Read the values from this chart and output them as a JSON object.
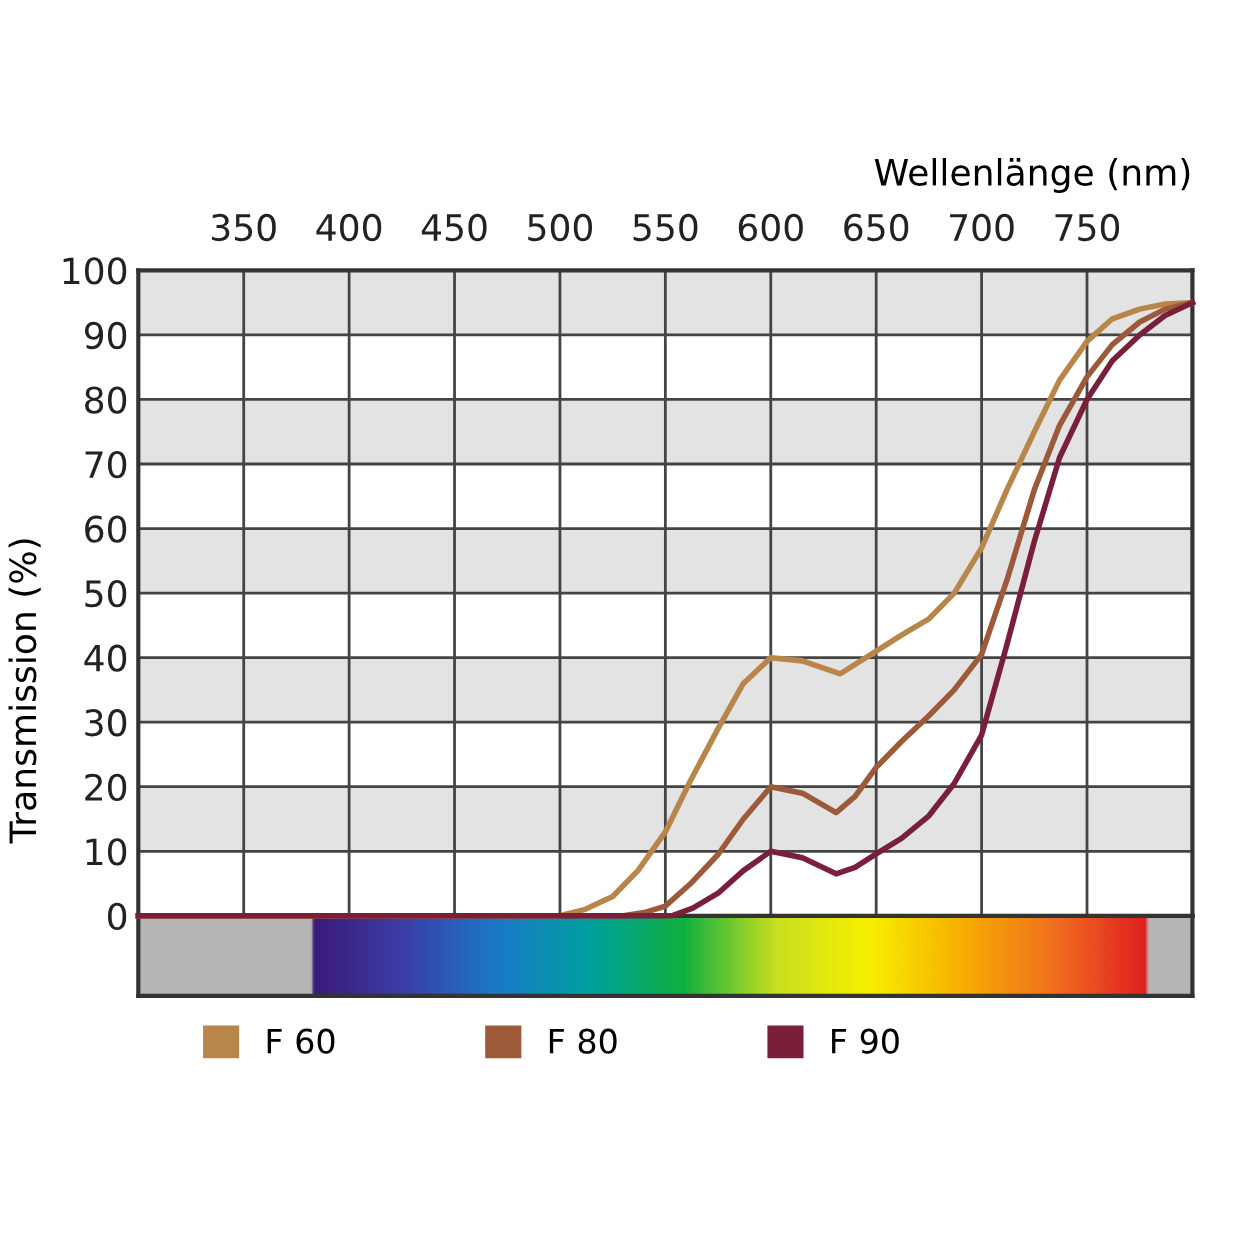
{
  "chart_data": {
    "type": "line",
    "xlabel": "Wellenlänge (nm)",
    "ylabel": "Transmission (%)",
    "xlim": [
      300,
      800
    ],
    "xticks": [
      350,
      400,
      450,
      500,
      550,
      600,
      650,
      700,
      750
    ],
    "ylim": [
      0,
      100
    ],
    "yticks": [
      0,
      10,
      20,
      30,
      40,
      50,
      60,
      70,
      80,
      90,
      100
    ],
    "grid": true,
    "legend": "bottom",
    "marker": "none",
    "line_style": "solid",
    "bands": [
      {
        "axis": "y",
        "from": 10,
        "to": 20,
        "color": "#e3e3e3"
      },
      {
        "axis": "y",
        "from": 30,
        "to": 40,
        "color": "#e3e3e3"
      },
      {
        "axis": "y",
        "from": 50,
        "to": 60,
        "color": "#e3e3e3"
      },
      {
        "axis": "y",
        "from": 70,
        "to": 80,
        "color": "#e3e3e3"
      },
      {
        "axis": "y",
        "from": 90,
        "to": 100,
        "color": "#e3e3e3"
      }
    ],
    "series": [
      {
        "name": "F 60",
        "color": "#b8864a",
        "x": [
          300,
          500,
          512,
          525,
          537,
          550,
          562,
          575,
          587,
          600,
          615,
          633,
          650,
          662,
          675,
          687,
          700,
          712,
          725,
          737,
          750,
          762,
          775,
          787,
          800
        ],
        "values": [
          0,
          0,
          1,
          3,
          7,
          13,
          21,
          29,
          36,
          40,
          39.5,
          37.5,
          41,
          43.5,
          46,
          50,
          57,
          66,
          75,
          83,
          89,
          92.5,
          94,
          94.8,
          95
        ]
      },
      {
        "name": "F 80",
        "color": "#9c5a3a",
        "x": [
          300,
          530,
          540,
          550,
          562,
          575,
          587,
          600,
          615,
          631,
          640,
          650,
          662,
          675,
          687,
          700,
          712,
          725,
          737,
          750,
          762,
          775,
          787,
          800
        ],
        "values": [
          0,
          0,
          0.5,
          1.5,
          5,
          9.5,
          15,
          20,
          19,
          16,
          18.5,
          23,
          27,
          31,
          35,
          40.5,
          52,
          66,
          76,
          83.5,
          88.5,
          92,
          94,
          95
        ]
      },
      {
        "name": "F 90",
        "color": "#7a1f3a",
        "x": [
          300,
          553,
          563,
          575,
          587,
          600,
          615,
          631,
          640,
          650,
          662,
          675,
          687,
          700,
          712,
          725,
          737,
          750,
          762,
          775,
          787,
          800
        ],
        "values": [
          0,
          0,
          1.2,
          3.5,
          7,
          10,
          9,
          6.5,
          7.5,
          9.6,
          12,
          15.5,
          20.5,
          28,
          42,
          58,
          71,
          80,
          86,
          90,
          93,
          95
        ]
      }
    ]
  }
}
